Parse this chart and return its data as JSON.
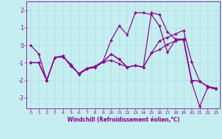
{
  "xlabel": "Windchill (Refroidissement éolien,°C)",
  "ylim": [
    -3.6,
    2.5
  ],
  "yticks": [
    -3,
    -2,
    -1,
    0,
    1,
    2
  ],
  "xlim": [
    -0.5,
    23.5
  ],
  "bg_color": "#c5eef0",
  "line_color": "#8b008b",
  "grid_color": "#b8dfe0",
  "marker": "D",
  "markersize": 2.0,
  "linewidth": 0.9,
  "lines": [
    [
      0.0,
      -0.5,
      -2.0,
      -0.7,
      -0.6,
      -1.2,
      -1.6,
      -1.3,
      -1.2,
      -0.9,
      0.3,
      1.1,
      0.6,
      1.85,
      1.85,
      1.75,
      1.1,
      -0.4,
      0.3,
      0.3,
      -2.1,
      -3.5,
      -2.4,
      -2.5
    ],
    [
      -1.0,
      -1.0,
      -2.0,
      -0.7,
      -0.65,
      -1.1,
      -1.65,
      -1.35,
      -1.25,
      -0.95,
      -0.5,
      -0.8,
      -1.25,
      -1.15,
      -1.25,
      -0.45,
      -0.25,
      0.05,
      0.25,
      0.35,
      -2.0,
      -2.05,
      -2.35,
      -2.45
    ],
    [
      -1.0,
      -1.0,
      -2.0,
      -0.7,
      -0.65,
      -1.1,
      -1.65,
      -1.35,
      -1.25,
      -0.95,
      -0.5,
      -0.8,
      -1.25,
      -1.15,
      -1.25,
      -0.45,
      0.25,
      0.45,
      0.65,
      0.85,
      -0.95,
      -2.05,
      -2.35,
      -2.45
    ],
    [
      -1.0,
      -1.0,
      -2.0,
      -0.7,
      -0.65,
      -1.1,
      -1.65,
      -1.35,
      -1.25,
      -0.95,
      -0.85,
      -1.05,
      -1.25,
      -1.15,
      -1.25,
      1.85,
      1.75,
      0.75,
      0.35,
      0.35,
      -2.0,
      -2.05,
      -2.35,
      -2.45
    ]
  ]
}
